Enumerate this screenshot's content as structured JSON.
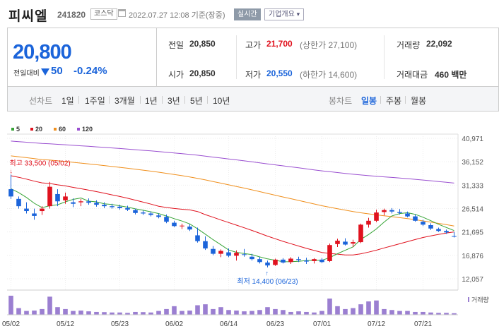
{
  "header": {
    "name": "피씨엘",
    "code": "241820",
    "market": "코스닥",
    "timestamp": "2022.07.27 12:08 기준(장중)",
    "realtime_label": "실시간",
    "company_label": "기업개요",
    "company_arrow": "▾"
  },
  "quote": {
    "price": "20,800",
    "change_label": "전일대비",
    "change": "50",
    "change_pct": "-0.24%"
  },
  "stats": {
    "prev_label": "전일",
    "prev": "20,850",
    "high_label": "고가",
    "high": "21,700",
    "upper_limit": "(상한가 27,100)",
    "volume_label": "거래량",
    "volume": "22,092",
    "open_label": "시가",
    "open": "20,850",
    "low_label": "저가",
    "low": "20,550",
    "lower_limit": "(하한가 14,600)",
    "amount_label": "거래대금",
    "amount": "460 백만"
  },
  "tabs": {
    "line_label": "선차트",
    "periods": [
      "1일",
      "1주일",
      "3개월",
      "1년",
      "3년",
      "5년",
      "10년"
    ],
    "candle_label": "봉차트",
    "candle_types": [
      "일봉",
      "주봉",
      "월봉"
    ],
    "selected_candle": "일봉"
  },
  "chart_data": {
    "type": "candlestick",
    "legend": [
      {
        "name": "5",
        "color": "#36a436"
      },
      {
        "name": "20",
        "color": "#e0121e"
      },
      {
        "name": "60",
        "color": "#f0901e"
      },
      {
        "name": "120",
        "color": "#9a4fd0"
      }
    ],
    "y_ticks": [
      40971,
      36152,
      31333,
      26514,
      21695,
      16876,
      12057
    ],
    "x_labels": [
      "05/02",
      "05/12",
      "05/23",
      "06/02",
      "06/14",
      "06/23",
      "07/01",
      "07/12",
      "07/21"
    ],
    "x_label_index": [
      0,
      7,
      14,
      21,
      28,
      34,
      40,
      47,
      53
    ],
    "annotations": {
      "max": "최고 33,500 (05/02)",
      "min": "최저 14,400 (06/23)"
    },
    "volume_label": "거래량",
    "candles": [
      [
        30500,
        33500,
        28500,
        29000
      ],
      [
        28500,
        29000,
        26500,
        27000
      ],
      [
        26500,
        27800,
        25500,
        26000
      ],
      [
        25500,
        26500,
        24200,
        25000
      ],
      [
        26000,
        27000,
        25200,
        26500
      ],
      [
        27000,
        32000,
        26500,
        31000
      ],
      [
        29500,
        30500,
        27000,
        28000
      ],
      [
        28200,
        29800,
        27500,
        29000
      ],
      [
        27800,
        28600,
        26800,
        27500
      ],
      [
        27800,
        28500,
        27000,
        28000
      ],
      [
        28000,
        28600,
        27300,
        27700
      ],
      [
        27700,
        28200,
        26900,
        27300
      ],
      [
        27300,
        27800,
        26600,
        27000
      ],
      [
        27000,
        27500,
        26500,
        26800
      ],
      [
        26900,
        27300,
        26300,
        26600
      ],
      [
        26600,
        27100,
        26000,
        26300
      ],
      [
        26200,
        26500,
        25300,
        25600
      ],
      [
        25700,
        26100,
        25200,
        25500
      ],
      [
        25500,
        25900,
        24900,
        25200
      ],
      [
        25100,
        25500,
        24500,
        24800
      ],
      [
        24800,
        25300,
        23500,
        23800
      ],
      [
        23600,
        24000,
        22700,
        22900
      ],
      [
        22900,
        23400,
        22300,
        23000
      ],
      [
        22800,
        23300,
        21900,
        22200
      ],
      [
        21000,
        22600,
        19500,
        19800
      ],
      [
        19800,
        20800,
        18000,
        18300
      ],
      [
        18200,
        18800,
        16900,
        17200
      ],
      [
        17200,
        18100,
        16500,
        17800
      ],
      [
        17500,
        18300,
        16500,
        16800
      ],
      [
        16800,
        17900,
        15800,
        17400
      ],
      [
        17100,
        18200,
        16600,
        17000
      ],
      [
        16600,
        17200,
        15800,
        16100
      ],
      [
        16100,
        16600,
        15200,
        15500
      ],
      [
        15400,
        15800,
        14400,
        14800
      ],
      [
        14900,
        16200,
        14700,
        16000
      ],
      [
        16000,
        16300,
        15200,
        15400
      ],
      [
        15500,
        16500,
        15100,
        16200
      ],
      [
        16100,
        16600,
        15500,
        15900
      ],
      [
        15800,
        16400,
        15100,
        15600
      ],
      [
        15700,
        16300,
        15200,
        16100
      ],
      [
        16000,
        16300,
        15300,
        15500
      ],
      [
        15700,
        19300,
        15500,
        19000
      ],
      [
        19200,
        20300,
        18600,
        19900
      ],
      [
        19700,
        20400,
        18900,
        19100
      ],
      [
        19300,
        20100,
        18600,
        19600
      ],
      [
        19600,
        23400,
        19400,
        23200
      ],
      [
        23200,
        24600,
        22600,
        24000
      ],
      [
        24000,
        26300,
        23700,
        25700
      ],
      [
        25800,
        26500,
        25100,
        26200
      ],
      [
        26200,
        26600,
        25500,
        25900
      ],
      [
        25800,
        26400,
        25300,
        25600
      ],
      [
        25500,
        25900,
        24700,
        24900
      ],
      [
        24900,
        25300,
        23800,
        24000
      ],
      [
        23800,
        24200,
        22900,
        23200
      ],
      [
        23100,
        23500,
        22100,
        22400
      ],
      [
        22300,
        22600,
        21700,
        21900
      ],
      [
        21900,
        22200,
        21300,
        21600
      ],
      [
        20850,
        21700,
        20550,
        20800
      ]
    ],
    "volumes": [
      1.0,
      0.35,
      0.2,
      0.22,
      0.3,
      0.95,
      0.4,
      0.3,
      0.2,
      0.22,
      0.18,
      0.15,
      0.14,
      0.12,
      0.12,
      0.1,
      0.15,
      0.14,
      0.12,
      0.2,
      0.3,
      0.45,
      0.2,
      0.22,
      0.5,
      0.55,
      0.3,
      0.4,
      0.25,
      0.22,
      0.18,
      0.2,
      0.25,
      0.4,
      0.3,
      0.25,
      0.15,
      0.18,
      0.15,
      0.12,
      0.2,
      0.85,
      0.45,
      0.3,
      0.35,
      0.55,
      0.7,
      0.75,
      0.3,
      0.25,
      0.2,
      0.2,
      0.15,
      0.15,
      0.12,
      0.1,
      0.1,
      0.08
    ]
  }
}
